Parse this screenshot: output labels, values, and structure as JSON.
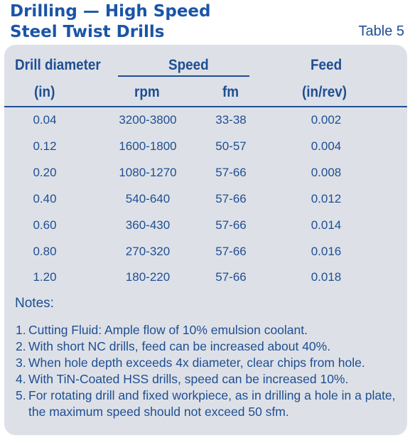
{
  "title": {
    "line1": "Drilling — High Speed",
    "line2": "Steel Twist Drills",
    "table_label": "Table 5"
  },
  "headers": {
    "drill_diameter": "Drill diameter",
    "drill_unit": "(in)",
    "speed": "Speed",
    "rpm": "rpm",
    "fm": "fm",
    "feed": "Feed",
    "feed_unit": "(in/rev)"
  },
  "rows": [
    {
      "diameter": "0.04",
      "rpm": "3200-3800",
      "fm": "33-38",
      "feed": "0.002"
    },
    {
      "diameter": "0.12",
      "rpm": "1600-1800",
      "fm": "50-57",
      "feed": "0.004"
    },
    {
      "diameter": "0.20",
      "rpm": "1080-1270",
      "fm": "57-66",
      "feed": "0.008"
    },
    {
      "diameter": "0.40",
      "rpm": "540-640",
      "fm": "57-66",
      "feed": "0.012"
    },
    {
      "diameter": "0.60",
      "rpm": "360-430",
      "fm": "57-66",
      "feed": "0.014"
    },
    {
      "diameter": "0.80",
      "rpm": "270-320",
      "fm": "57-66",
      "feed": "0.016"
    },
    {
      "diameter": "1.20",
      "rpm": "180-220",
      "fm": "57-66",
      "feed": "0.018"
    }
  ],
  "notes": {
    "title": "Notes:",
    "items": [
      {
        "num": "1.",
        "text": "Cutting Fluid: Ample flow of 10% emulsion coolant."
      },
      {
        "num": "2.",
        "text": "With short NC drills, feed can be increased about 40%."
      },
      {
        "num": "3.",
        "text": "When hole depth exceeds 4x diameter, clear chips from hole."
      },
      {
        "num": "4.",
        "text": "With TiN-Coated HSS drills, speed can be increased 10%."
      },
      {
        "num": "5.",
        "text": "For rotating drill and fixed workpiece, as in drilling a hole in a plate, the maximum speed should not exceed 50 sfm."
      }
    ]
  }
}
